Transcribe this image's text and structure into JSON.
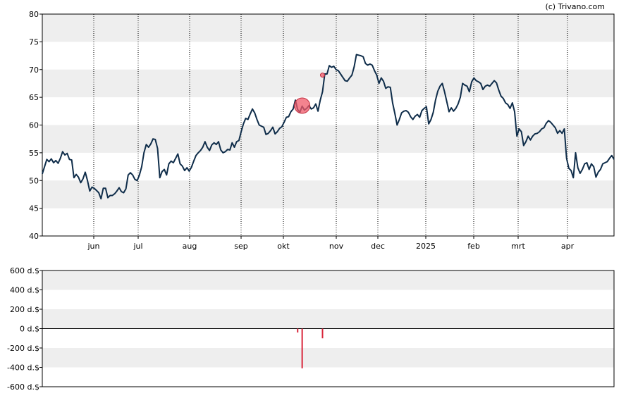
{
  "copyright": "(c) Trivano.com",
  "colors": {
    "band": "#eeeeee",
    "price_line": "#0f2d4a",
    "marker": "#f05a6a",
    "volume_bar": "#d9253a",
    "grid": "#000000"
  },
  "chart_data": [
    {
      "type": "line",
      "ylim": [
        40,
        80
      ],
      "y_ticks": [
        "40",
        "45",
        "50",
        "55",
        "60",
        "65",
        "70",
        "75",
        "80"
      ],
      "x_tick_labels": [
        "jun",
        "jul",
        "aug",
        "sep",
        "okt",
        "nov",
        "dec",
        "2025",
        "feb",
        "mrt",
        "apr"
      ],
      "grid": "vertical dotted at month starts, alternating horizontal bands",
      "series": [
        {
          "values": [
            51.2,
            52.5,
            53.8,
            53.4,
            53.9,
            53.2,
            53.6,
            53.1,
            54.0,
            55.2,
            54.6,
            54.9,
            53.8,
            53.7,
            50.5,
            51.1,
            50.6,
            49.6,
            50.3,
            51.5,
            50.0,
            48.1,
            48.8,
            48.6,
            48.2,
            47.8,
            46.7,
            48.6,
            48.6,
            46.9,
            47.3,
            47.3,
            47.6,
            48.1,
            48.7,
            48.0,
            47.8,
            48.5,
            51.0,
            51.4,
            51.0,
            50.2,
            50.0,
            51.0,
            52.5,
            55.0,
            56.5,
            56.0,
            56.6,
            57.5,
            57.4,
            55.8,
            50.5,
            51.6,
            52.0,
            51.0,
            53.0,
            53.5,
            53.2,
            54.0,
            54.8,
            53.0,
            52.6,
            51.8,
            52.3,
            51.7,
            52.4,
            53.5,
            54.5,
            55.0,
            55.4,
            56.0,
            57.0,
            56.0,
            55.4,
            56.4,
            56.8,
            56.5,
            57.0,
            55.5,
            55.0,
            55.2,
            55.6,
            55.5,
            56.8,
            56.0,
            57.0,
            57.2,
            58.8,
            60.2,
            61.2,
            61.0,
            62.0,
            62.9,
            62.2,
            61.0,
            60.0,
            59.8,
            59.6,
            58.3,
            58.5,
            59.0,
            59.6,
            58.4,
            58.8,
            59.4,
            59.7,
            60.5,
            61.4,
            61.5,
            62.4,
            62.9,
            64.5,
            62.8,
            62.3,
            63.4,
            62.7,
            63.0,
            63.5,
            62.9,
            63.1,
            63.8,
            62.5,
            64.5,
            66.0,
            69.2,
            69.2,
            70.7,
            70.4,
            70.6,
            70.0,
            69.8,
            69.2,
            68.6,
            68.0,
            67.9,
            68.5,
            69.0,
            70.5,
            72.7,
            72.6,
            72.5,
            72.3,
            71.1,
            70.8,
            71.0,
            70.8,
            69.8,
            69.0,
            67.5,
            68.5,
            67.9,
            66.6,
            66.9,
            66.8,
            64.0,
            62.1,
            60.0,
            61.0,
            62.2,
            62.5,
            62.6,
            62.3,
            61.5,
            61.0,
            61.6,
            61.9,
            61.4,
            62.6,
            63.0,
            63.3,
            60.2,
            61.0,
            62.3,
            64.5,
            66.1,
            67.0,
            67.5,
            66.0,
            64.2,
            62.4,
            63.1,
            62.5,
            63.0,
            63.8,
            65.0,
            67.5,
            67.2,
            67.0,
            66.0,
            67.8,
            68.5,
            68.0,
            67.8,
            67.5,
            66.4,
            67.0,
            67.2,
            67.0,
            67.5,
            68.0,
            67.6,
            66.3,
            65.2,
            64.8,
            64.0,
            63.7,
            63.0,
            64.0,
            62.4,
            58.0,
            59.3,
            58.8,
            56.3,
            57.0,
            58.0,
            57.3,
            58.0,
            58.4,
            58.5,
            58.8,
            59.3,
            59.5,
            60.3,
            60.8,
            60.5,
            60.0,
            59.5,
            58.5,
            59.0,
            58.5,
            59.3,
            54.0,
            52.2,
            51.8,
            50.5,
            55.0,
            52.3,
            51.3,
            52.0,
            53.0,
            53.2,
            52.0,
            53.0,
            52.5,
            50.6,
            51.5,
            52.0,
            53.0,
            53.2,
            53.4,
            54.0,
            54.5,
            53.8
          ]
        }
      ],
      "markers": [
        {
          "index": 115,
          "value": 63.5,
          "size": "large"
        },
        {
          "index": 124,
          "value": 69.0,
          "size": "small"
        }
      ]
    },
    {
      "type": "bar",
      "ylim": [
        -600,
        600
      ],
      "y_ticks": [
        "600 d.$",
        "400 d.$",
        "200 d.$",
        "0 d.$",
        "-200 d.$",
        "-400 d.$",
        "-600 d.$"
      ],
      "bars": [
        {
          "index": 113,
          "value": -40
        },
        {
          "index": 115,
          "value": -410
        },
        {
          "index": 124,
          "value": -100
        }
      ]
    }
  ]
}
